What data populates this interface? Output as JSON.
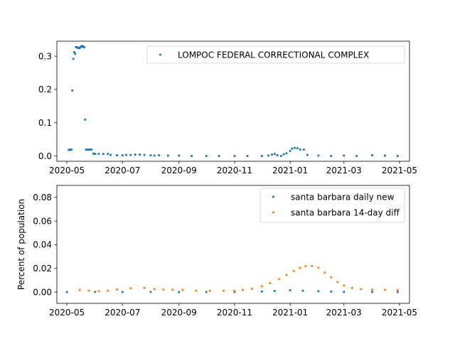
{
  "chart_data": [
    {
      "type": "scatter",
      "title": "",
      "xlabel": "",
      "ylabel": "",
      "xlim": [
        "2020-04-20",
        "2021-05-12"
      ],
      "ylim": [
        -0.016,
        0.345
      ],
      "xticks": [
        "2020-05",
        "2020-07",
        "2020-09",
        "2020-11",
        "2021-01",
        "2021-03",
        "2021-05"
      ],
      "yticks": [
        "0.0",
        "0.1",
        "0.2",
        "0.3"
      ],
      "grid": false,
      "legend": "top-right",
      "series": [
        {
          "name": "LOMPOC FEDERAL CORRECTIONAL COMPLEX",
          "color": "#1f77b4",
          "points": [
            [
              "2020-05-03",
              0.018
            ],
            [
              "2020-05-04",
              0.018
            ],
            [
              "2020-05-05",
              0.019
            ],
            [
              "2020-05-06",
              0.019
            ],
            [
              "2020-05-07",
              0.197
            ],
            [
              "2020-05-08",
              0.292
            ],
            [
              "2020-05-09",
              0.312
            ],
            [
              "2020-05-10",
              0.307
            ],
            [
              "2020-05-11",
              0.327
            ],
            [
              "2020-05-12",
              0.327
            ],
            [
              "2020-05-13",
              0.325
            ],
            [
              "2020-05-14",
              0.325
            ],
            [
              "2020-05-15",
              0.324
            ],
            [
              "2020-05-16",
              0.328
            ],
            [
              "2020-05-17",
              0.329
            ],
            [
              "2020-05-18",
              0.331
            ],
            [
              "2020-05-19",
              0.328
            ],
            [
              "2020-05-20",
              0.327
            ],
            [
              "2020-05-21",
              0.109
            ],
            [
              "2020-05-22",
              0.019
            ],
            [
              "2020-05-24",
              0.019
            ],
            [
              "2020-05-26",
              0.019
            ],
            [
              "2020-05-28",
              0.019
            ],
            [
              "2020-05-30",
              0.007
            ],
            [
              "2020-06-01",
              0.006
            ],
            [
              "2020-06-05",
              0.006
            ],
            [
              "2020-06-10",
              0.006
            ],
            [
              "2020-06-15",
              0.006
            ],
            [
              "2020-06-18",
              0.003
            ],
            [
              "2020-06-25",
              0.002
            ],
            [
              "2020-07-01",
              0.002
            ],
            [
              "2020-07-05",
              0.003
            ],
            [
              "2020-07-10",
              0.003
            ],
            [
              "2020-07-15",
              0.004
            ],
            [
              "2020-07-20",
              0.004
            ],
            [
              "2020-07-25",
              0.003
            ],
            [
              "2020-08-01",
              0.002
            ],
            [
              "2020-08-05",
              0.001
            ],
            [
              "2020-08-10",
              0.002
            ],
            [
              "2020-08-20",
              0.001
            ],
            [
              "2020-09-01",
              0.001
            ],
            [
              "2020-09-15",
              0.0
            ],
            [
              "2020-10-01",
              0.0
            ],
            [
              "2020-10-15",
              0.0
            ],
            [
              "2020-11-01",
              0.0
            ],
            [
              "2020-11-15",
              0.0
            ],
            [
              "2020-12-01",
              0.0
            ],
            [
              "2020-12-08",
              0.001
            ],
            [
              "2020-12-12",
              0.004
            ],
            [
              "2020-12-15",
              0.006
            ],
            [
              "2020-12-18",
              0.002
            ],
            [
              "2020-12-22",
              0.0
            ],
            [
              "2020-12-25",
              0.005
            ],
            [
              "2020-12-28",
              0.008
            ],
            [
              "2021-01-01",
              0.015
            ],
            [
              "2021-01-03",
              0.022
            ],
            [
              "2021-01-06",
              0.024
            ],
            [
              "2021-01-09",
              0.023
            ],
            [
              "2021-01-12",
              0.019
            ],
            [
              "2021-01-16",
              0.019
            ],
            [
              "2021-01-20",
              0.003
            ],
            [
              "2021-02-01",
              0.001
            ],
            [
              "2021-02-15",
              0.0
            ],
            [
              "2021-03-01",
              0.001
            ],
            [
              "2021-03-15",
              0.0
            ],
            [
              "2021-04-01",
              0.002
            ],
            [
              "2021-04-15",
              0.001
            ],
            [
              "2021-04-29",
              0.0
            ]
          ]
        }
      ]
    },
    {
      "type": "scatter",
      "title": "",
      "xlabel": "",
      "ylabel": "Percent of population",
      "xlim": [
        "2020-04-20",
        "2021-05-12"
      ],
      "ylim": [
        -0.0095,
        0.09
      ],
      "xticks": [
        "2020-05",
        "2020-07",
        "2020-09",
        "2020-11",
        "2021-01",
        "2021-03",
        "2021-05"
      ],
      "yticks": [
        "0.00",
        "0.02",
        "0.04",
        "0.06",
        "0.08"
      ],
      "grid": false,
      "legend": "top-right",
      "series": [
        {
          "name": "santa barbara daily new",
          "color": "#1f77b4",
          "points": [
            [
              "2020-05-01",
              0.0
            ],
            [
              "2020-06-01",
              0.0001
            ],
            [
              "2020-07-01",
              0.0001
            ],
            [
              "2020-08-01",
              0.0001
            ],
            [
              "2020-09-01",
              0.0
            ],
            [
              "2020-10-01",
              0.0001
            ],
            [
              "2020-11-01",
              0.0001
            ],
            [
              "2020-12-01",
              0.0005
            ],
            [
              "2020-12-15",
              0.001
            ],
            [
              "2021-01-01",
              0.0015
            ],
            [
              "2021-01-15",
              0.0012
            ],
            [
              "2021-02-01",
              0.0008
            ],
            [
              "2021-02-15",
              0.0004
            ],
            [
              "2021-03-01",
              0.0002
            ],
            [
              "2021-04-01",
              0.0001
            ],
            [
              "2021-04-29",
              0.0001
            ]
          ]
        },
        {
          "name": "santa barbara 14-day diff",
          "color": "#ff7f0e",
          "points": [
            [
              "2020-05-15",
              0.0018
            ],
            [
              "2020-05-25",
              0.0012
            ],
            [
              "2020-06-05",
              0.0008
            ],
            [
              "2020-06-15",
              0.0012
            ],
            [
              "2020-06-25",
              0.0022
            ],
            [
              "2020-07-10",
              0.0032
            ],
            [
              "2020-07-25",
              0.0035
            ],
            [
              "2020-08-05",
              0.0025
            ],
            [
              "2020-08-15",
              0.0022
            ],
            [
              "2020-08-25",
              0.002
            ],
            [
              "2020-09-05",
              0.0018
            ],
            [
              "2020-09-20",
              0.0012
            ],
            [
              "2020-10-05",
              0.0011
            ],
            [
              "2020-10-20",
              0.0011
            ],
            [
              "2020-11-01",
              0.0012
            ],
            [
              "2020-11-10",
              0.0018
            ],
            [
              "2020-11-20",
              0.0028
            ],
            [
              "2020-12-01",
              0.0048
            ],
            [
              "2020-12-10",
              0.0075
            ],
            [
              "2020-12-20",
              0.011
            ],
            [
              "2020-12-28",
              0.0145
            ],
            [
              "2021-01-05",
              0.0178
            ],
            [
              "2021-01-12",
              0.0205
            ],
            [
              "2021-01-18",
              0.0218
            ],
            [
              "2021-01-25",
              0.022
            ],
            [
              "2021-02-01",
              0.0205
            ],
            [
              "2021-02-08",
              0.0165
            ],
            [
              "2021-02-15",
              0.0125
            ],
            [
              "2021-02-22",
              0.0085
            ],
            [
              "2021-03-01",
              0.0055
            ],
            [
              "2021-03-10",
              0.0035
            ],
            [
              "2021-03-20",
              0.0025
            ],
            [
              "2021-04-01",
              0.002
            ],
            [
              "2021-04-15",
              0.0019
            ],
            [
              "2021-04-29",
              0.0018
            ]
          ]
        }
      ]
    }
  ]
}
